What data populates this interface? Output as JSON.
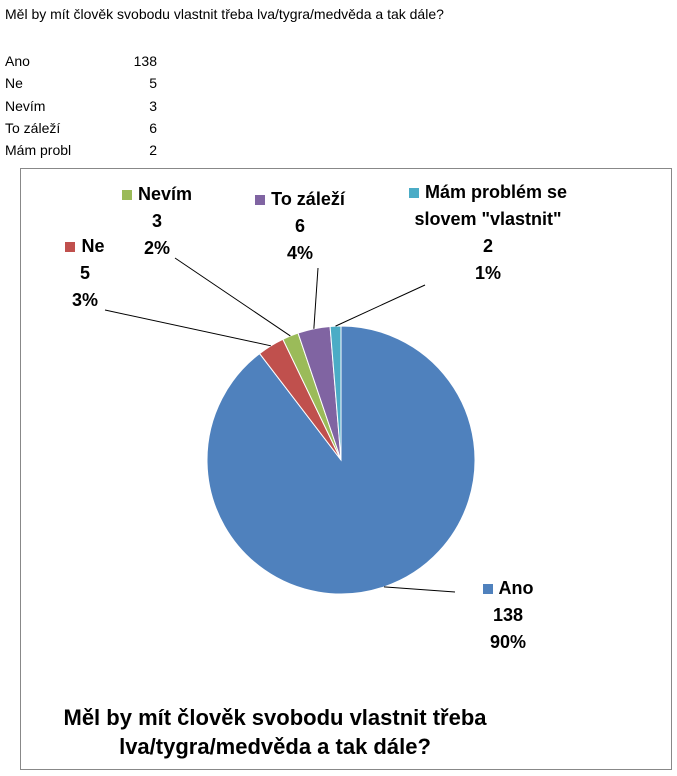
{
  "sheet": {
    "question": "Měl by mít člověk svobodu vlastnit třeba lva/tygra/medvěda a tak dále?",
    "rows": [
      [
        "Ano",
        138
      ],
      [
        "Ne",
        5
      ],
      [
        "Nevím",
        3
      ],
      [
        "To záleží",
        6
      ],
      [
        "Mám probl",
        2
      ]
    ]
  },
  "chart_data": {
    "type": "pie",
    "title": "Měl by mít člověk svobodu vlastnit třeba lva/tygra/medvěda a tak dále?",
    "categories": [
      "Ano",
      "Ne",
      "Nevím",
      "To záleží",
      "Mám problém se slovem \"vlastnit\""
    ],
    "values": [
      138,
      5,
      3,
      6,
      2
    ],
    "percent_labels": [
      "90%",
      "3%",
      "2%",
      "4%",
      "1%"
    ],
    "colors": [
      "#4f81bd",
      "#c0504d",
      "#9bbb59",
      "#8064a2",
      "#4bacc6"
    ]
  }
}
